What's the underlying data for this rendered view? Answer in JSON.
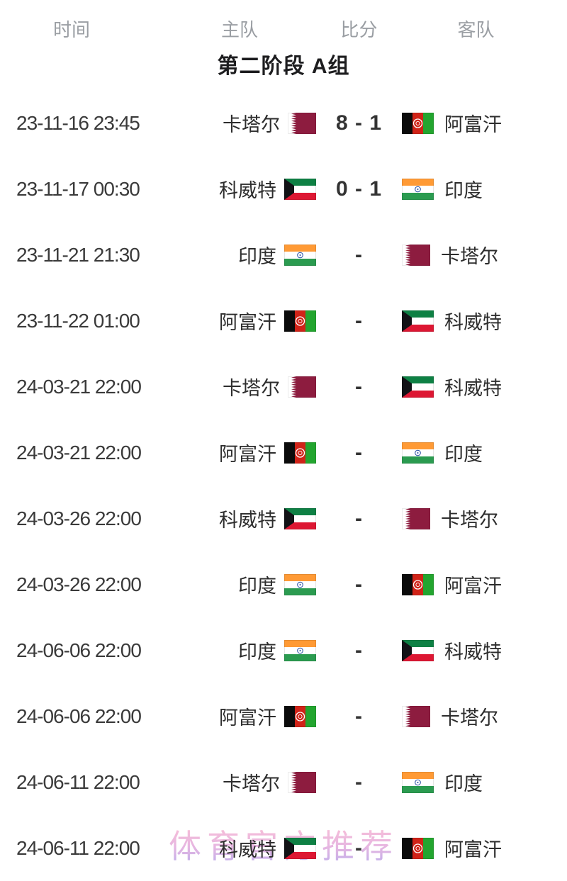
{
  "columns": {
    "time": "时间",
    "home": "主队",
    "score": "比分",
    "away": "客队"
  },
  "group_title": "第二阶段 A组",
  "matches": [
    {
      "time": "23-11-16 23:45",
      "home": "卡塔尔",
      "home_flag": "qatar",
      "score": "8 - 1",
      "away": "阿富汗",
      "away_flag": "afghanistan"
    },
    {
      "time": "23-11-17 00:30",
      "home": "科威特",
      "home_flag": "kuwait",
      "score": "0 - 1",
      "away": "印度",
      "away_flag": "india"
    },
    {
      "time": "23-11-21 21:30",
      "home": "印度",
      "home_flag": "india",
      "score": "-",
      "away": "卡塔尔",
      "away_flag": "qatar"
    },
    {
      "time": "23-11-22 01:00",
      "home": "阿富汗",
      "home_flag": "afghanistan",
      "score": "-",
      "away": "科威特",
      "away_flag": "kuwait"
    },
    {
      "time": "24-03-21 22:00",
      "home": "卡塔尔",
      "home_flag": "qatar",
      "score": "-",
      "away": "科威特",
      "away_flag": "kuwait"
    },
    {
      "time": "24-03-21 22:00",
      "home": "阿富汗",
      "home_flag": "afghanistan",
      "score": "-",
      "away": "印度",
      "away_flag": "india"
    },
    {
      "time": "24-03-26 22:00",
      "home": "科威特",
      "home_flag": "kuwait",
      "score": "-",
      "away": "卡塔尔",
      "away_flag": "qatar"
    },
    {
      "time": "24-03-26 22:00",
      "home": "印度",
      "home_flag": "india",
      "score": "-",
      "away": "阿富汗",
      "away_flag": "afghanistan"
    },
    {
      "time": "24-06-06 22:00",
      "home": "印度",
      "home_flag": "india",
      "score": "-",
      "away": "科威特",
      "away_flag": "kuwait"
    },
    {
      "time": "24-06-06 22:00",
      "home": "阿富汗",
      "home_flag": "afghanistan",
      "score": "-",
      "away": "卡塔尔",
      "away_flag": "qatar"
    },
    {
      "time": "24-06-11 22:00",
      "home": "卡塔尔",
      "home_flag": "qatar",
      "score": "-",
      "away": "印度",
      "away_flag": "india"
    },
    {
      "time": "24-06-11 22:00",
      "home": "科威特",
      "home_flag": "kuwait",
      "score": "-",
      "away": "阿富汗",
      "away_flag": "afghanistan"
    }
  ],
  "watermark": "体育官方推荐",
  "flag_colors": {
    "qatar": {
      "white": "#ffffff",
      "maroon": "#8d1c3f"
    },
    "kuwait": {
      "green": "#0e8044",
      "white": "#ffffff",
      "red": "#dd1733",
      "black": "#121216"
    },
    "india": {
      "saffron": "#ff9a35",
      "white": "#ffffff",
      "green": "#2b9b50",
      "navy": "#2048a0"
    },
    "afghanistan": {
      "black": "#0b0b0b",
      "red": "#d02318",
      "green": "#23a52f",
      "white": "#ffffff"
    }
  }
}
